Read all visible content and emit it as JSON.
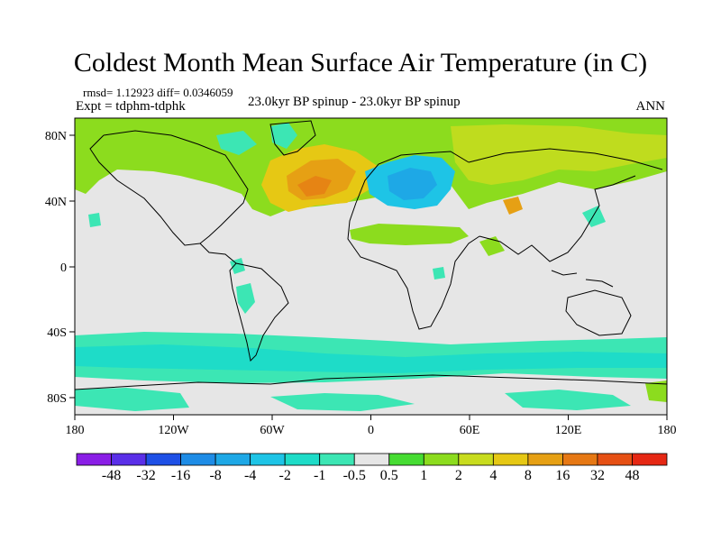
{
  "title": "Coldest Month Mean Surface Air Temperature (in C)",
  "stats": "rmsd= 1.12923  diff= 0.0346059",
  "expt": "Expt = tdphm-tdphk",
  "subtitle": "23.0kyr BP spinup - 23.0kyr BP spinup",
  "season": "ANN",
  "axes": {
    "lon_labels": [
      "180",
      "120W",
      "60W",
      "0",
      "60E",
      "120E",
      "180"
    ],
    "lat_labels": [
      "80N",
      "40N",
      "0",
      "40S",
      "80S"
    ]
  },
  "colorbar": {
    "labels": [
      "-48",
      "-32",
      "-16",
      "-8",
      "-4",
      "-2",
      "-1",
      "-0.5",
      "0.5",
      "1",
      "2",
      "4",
      "8",
      "16",
      "32",
      "48"
    ],
    "colors": [
      "#8a1ee6",
      "#5a2fe8",
      "#1e50e6",
      "#1e8ce6",
      "#1ea8e6",
      "#1ec4e6",
      "#1edcc8",
      "#3ce6b4",
      "#e6e6e6",
      "#46dc32",
      "#8cdc1e",
      "#c8dc1e",
      "#e6c814",
      "#e6a014",
      "#e67814",
      "#e65014",
      "#e62814"
    ]
  }
}
